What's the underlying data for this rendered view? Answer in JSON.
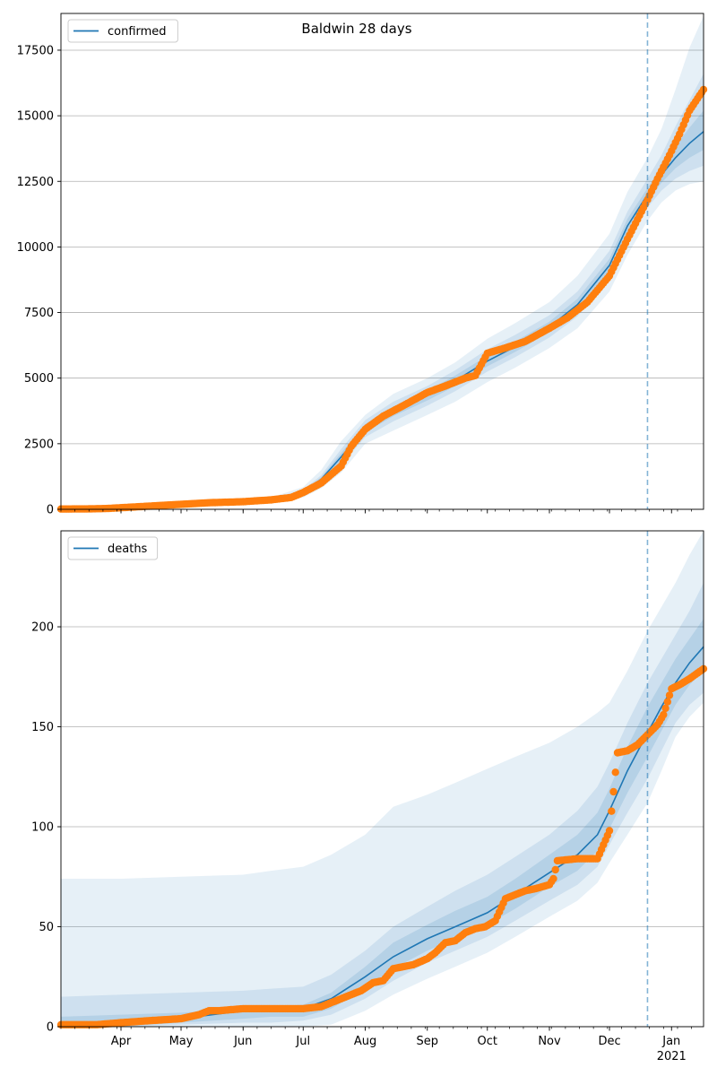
{
  "title": "Baldwin 28 days",
  "colors": {
    "model": "#1f77b4",
    "observed": "#ff7f0e",
    "band": "#1f77b4",
    "grid": "#b0b0b0",
    "forecast_line": "#1f77b4"
  },
  "x_axis": {
    "start": "2020-03-02",
    "end": "2021-01-17",
    "forecast_start": "2020-12-20",
    "month_ticks": [
      {
        "date": "2020-04-01",
        "label": "Apr"
      },
      {
        "date": "2020-05-01",
        "label": "May"
      },
      {
        "date": "2020-06-01",
        "label": "Jun"
      },
      {
        "date": "2020-07-01",
        "label": "Jul"
      },
      {
        "date": "2020-08-01",
        "label": "Aug"
      },
      {
        "date": "2020-09-01",
        "label": "Sep"
      },
      {
        "date": "2020-10-01",
        "label": "Oct"
      },
      {
        "date": "2020-11-01",
        "label": "Nov"
      },
      {
        "date": "2020-12-01",
        "label": "Dec"
      },
      {
        "date": "2021-01-01",
        "label": "Jan"
      }
    ],
    "year_label": "2021"
  },
  "chart_data": [
    {
      "type": "line",
      "legend": [
        "confirmed"
      ],
      "legend_position": "upper-left",
      "grid": "y",
      "ylim": [
        0,
        18900
      ],
      "yticks": [
        0,
        2500,
        5000,
        7500,
        10000,
        12500,
        15000,
        17500
      ],
      "model_series": {
        "name": "confirmed",
        "x": [
          "2020-03-02",
          "2020-04-01",
          "2020-05-01",
          "2020-06-01",
          "2020-06-15",
          "2020-07-01",
          "2020-07-10",
          "2020-07-20",
          "2020-08-01",
          "2020-08-15",
          "2020-09-01",
          "2020-09-15",
          "2020-10-01",
          "2020-10-15",
          "2020-11-01",
          "2020-11-15",
          "2020-12-01",
          "2020-12-10",
          "2020-12-20",
          "2020-12-27",
          "2021-01-03",
          "2021-01-10",
          "2021-01-17"
        ],
        "y": [
          0,
          20,
          150,
          250,
          350,
          650,
          1150,
          2000,
          3100,
          3750,
          4350,
          4900,
          5650,
          6200,
          6950,
          7800,
          9300,
          10800,
          12000,
          12750,
          13400,
          13950,
          14400
        ]
      },
      "bands": [
        {
          "level": "outer",
          "lower": [
            0,
            0,
            100,
            180,
            250,
            450,
            800,
            1400,
            2500,
            3000,
            3600,
            4100,
            4850,
            5400,
            6150,
            6900,
            8300,
            9700,
            11000,
            11700,
            12150,
            12400,
            12500
          ],
          "upper": [
            0,
            40,
            200,
            320,
            450,
            850,
            1500,
            2600,
            3600,
            4400,
            5000,
            5600,
            6500,
            7100,
            7900,
            8900,
            10500,
            12100,
            13400,
            14500,
            16000,
            17600,
            18800
          ]
        },
        {
          "level": "middle",
          "lower": [
            0,
            5,
            120,
            210,
            300,
            550,
            1000,
            1700,
            2750,
            3350,
            3950,
            4500,
            5250,
            5800,
            6550,
            7350,
            8800,
            10250,
            11500,
            12150,
            12600,
            12900,
            13100
          ],
          "upper": [
            0,
            30,
            180,
            290,
            400,
            750,
            1300,
            2300,
            3400,
            4100,
            4700,
            5300,
            6100,
            6650,
            7400,
            8300,
            9850,
            11350,
            12600,
            13500,
            14600,
            15600,
            16600
          ]
        },
        {
          "level": "inner",
          "lower": [
            0,
            10,
            135,
            230,
            325,
            600,
            1075,
            1850,
            2925,
            3550,
            4150,
            4700,
            5450,
            6000,
            6750,
            7575,
            9050,
            10525,
            11750,
            12450,
            13000,
            13400,
            13700
          ],
          "upper": [
            0,
            25,
            165,
            270,
            375,
            700,
            1225,
            2150,
            3250,
            3925,
            4525,
            5100,
            5850,
            6400,
            7150,
            8025,
            9550,
            11075,
            12250,
            13050,
            13850,
            14550,
            15200
          ]
        }
      ],
      "observed_series": {
        "name": "observed",
        "x": [
          "2020-03-02",
          "2020-03-15",
          "2020-03-25",
          "2020-04-01",
          "2020-04-15",
          "2020-05-01",
          "2020-05-15",
          "2020-06-01",
          "2020-06-15",
          "2020-06-25",
          "2020-07-01",
          "2020-07-10",
          "2020-07-20",
          "2020-07-25",
          "2020-08-01",
          "2020-08-10",
          "2020-08-20",
          "2020-09-01",
          "2020-09-10",
          "2020-09-20",
          "2020-09-25",
          "2020-10-01",
          "2020-10-10",
          "2020-10-20",
          "2020-11-01",
          "2020-11-10",
          "2020-11-20",
          "2020-12-01",
          "2020-12-10",
          "2020-12-20",
          "2020-12-25",
          "2020-12-31",
          "2021-01-05",
          "2021-01-10",
          "2021-01-17"
        ],
        "y": [
          10,
          15,
          30,
          60,
          120,
          190,
          250,
          290,
          360,
          450,
          640,
          1000,
          1650,
          2400,
          3050,
          3550,
          3950,
          4450,
          4700,
          5000,
          5100,
          5950,
          6150,
          6400,
          6900,
          7300,
          7900,
          8900,
          10300,
          11800,
          12600,
          13500,
          14300,
          15200,
          16000
        ]
      }
    },
    {
      "type": "line",
      "legend": [
        "deaths"
      ],
      "legend_position": "upper-left",
      "grid": "y",
      "ylim": [
        0,
        248
      ],
      "yticks": [
        0,
        50,
        100,
        150,
        200
      ],
      "model_series": {
        "name": "deaths",
        "x": [
          "2020-03-02",
          "2020-04-01",
          "2020-05-01",
          "2020-06-01",
          "2020-06-15",
          "2020-07-01",
          "2020-07-15",
          "2020-08-01",
          "2020-08-15",
          "2020-09-01",
          "2020-09-15",
          "2020-10-01",
          "2020-10-15",
          "2020-11-01",
          "2020-11-15",
          "2020-11-25",
          "2020-12-01",
          "2020-12-10",
          "2020-12-20",
          "2020-12-27",
          "2021-01-03",
          "2021-01-10",
          "2021-01-17"
        ],
        "y": [
          1,
          2,
          4,
          8,
          9,
          9,
          14,
          25,
          35,
          44,
          50,
          57,
          66,
          77,
          86,
          96,
          108,
          128,
          147,
          160,
          172,
          182,
          190
        ]
      },
      "bands": [
        {
          "level": "outer",
          "lower": [
            0,
            0,
            0,
            0,
            0,
            0,
            1,
            8,
            16,
            24,
            30,
            37,
            45,
            55,
            63,
            72,
            82,
            96,
            112,
            128,
            145,
            155,
            162
          ],
          "upper": [
            74,
            74,
            75,
            76,
            78,
            80,
            86,
            96,
            110,
            116,
            122,
            129,
            135,
            142,
            150,
            157,
            162,
            178,
            198,
            210,
            222,
            236,
            248
          ]
        },
        {
          "level": "middle",
          "lower": [
            0,
            0,
            1,
            2,
            2,
            3,
            6,
            14,
            23,
            32,
            38,
            45,
            53,
            63,
            71,
            80,
            91,
            107,
            124,
            138,
            152,
            161,
            167
          ],
          "upper": [
            15,
            16,
            17,
            18,
            19,
            20,
            26,
            38,
            50,
            60,
            68,
            76,
            85,
            96,
            108,
            120,
            132,
            152,
            172,
            184,
            196,
            208,
            222
          ]
        },
        {
          "level": "inner",
          "lower": [
            0,
            0,
            2,
            4,
            5,
            5,
            9,
            19,
            29,
            38,
            44,
            51,
            59,
            70,
            78,
            88,
            99,
            117,
            135,
            148,
            161,
            171,
            178
          ],
          "upper": [
            5,
            6,
            7,
            9,
            10,
            11,
            17,
            30,
            42,
            51,
            58,
            65,
            74,
            86,
            96,
            107,
            119,
            140,
            160,
            172,
            184,
            194,
            204
          ]
        }
      ],
      "observed_series": {
        "name": "observed",
        "x": [
          "2020-03-02",
          "2020-03-20",
          "2020-04-01",
          "2020-04-15",
          "2020-05-01",
          "2020-05-10",
          "2020-05-15",
          "2020-05-20",
          "2020-06-01",
          "2020-06-15",
          "2020-07-01",
          "2020-07-10",
          "2020-07-20",
          "2020-07-30",
          "2020-08-05",
          "2020-08-10",
          "2020-08-15",
          "2020-08-25",
          "2020-09-01",
          "2020-09-05",
          "2020-09-10",
          "2020-09-15",
          "2020-09-20",
          "2020-09-25",
          "2020-09-30",
          "2020-10-05",
          "2020-10-10",
          "2020-10-15",
          "2020-10-20",
          "2020-10-25",
          "2020-11-01",
          "2020-11-03",
          "2020-11-05",
          "2020-11-15",
          "2020-11-25",
          "2020-12-01",
          "2020-12-05",
          "2020-12-10",
          "2020-12-15",
          "2020-12-20",
          "2020-12-25",
          "2020-12-28",
          "2021-01-01",
          "2021-01-05",
          "2021-01-10",
          "2021-01-17"
        ],
        "y": [
          1,
          1,
          2,
          3,
          4,
          6,
          8,
          8,
          9,
          9,
          9,
          10,
          14,
          18,
          22,
          23,
          29,
          31,
          34,
          37,
          42,
          43,
          47,
          49,
          50,
          53,
          64,
          66,
          68,
          69,
          71,
          74,
          83,
          84,
          84,
          98,
          137,
          138,
          141,
          146,
          151,
          156,
          169,
          171,
          174,
          179
        ]
      }
    }
  ]
}
